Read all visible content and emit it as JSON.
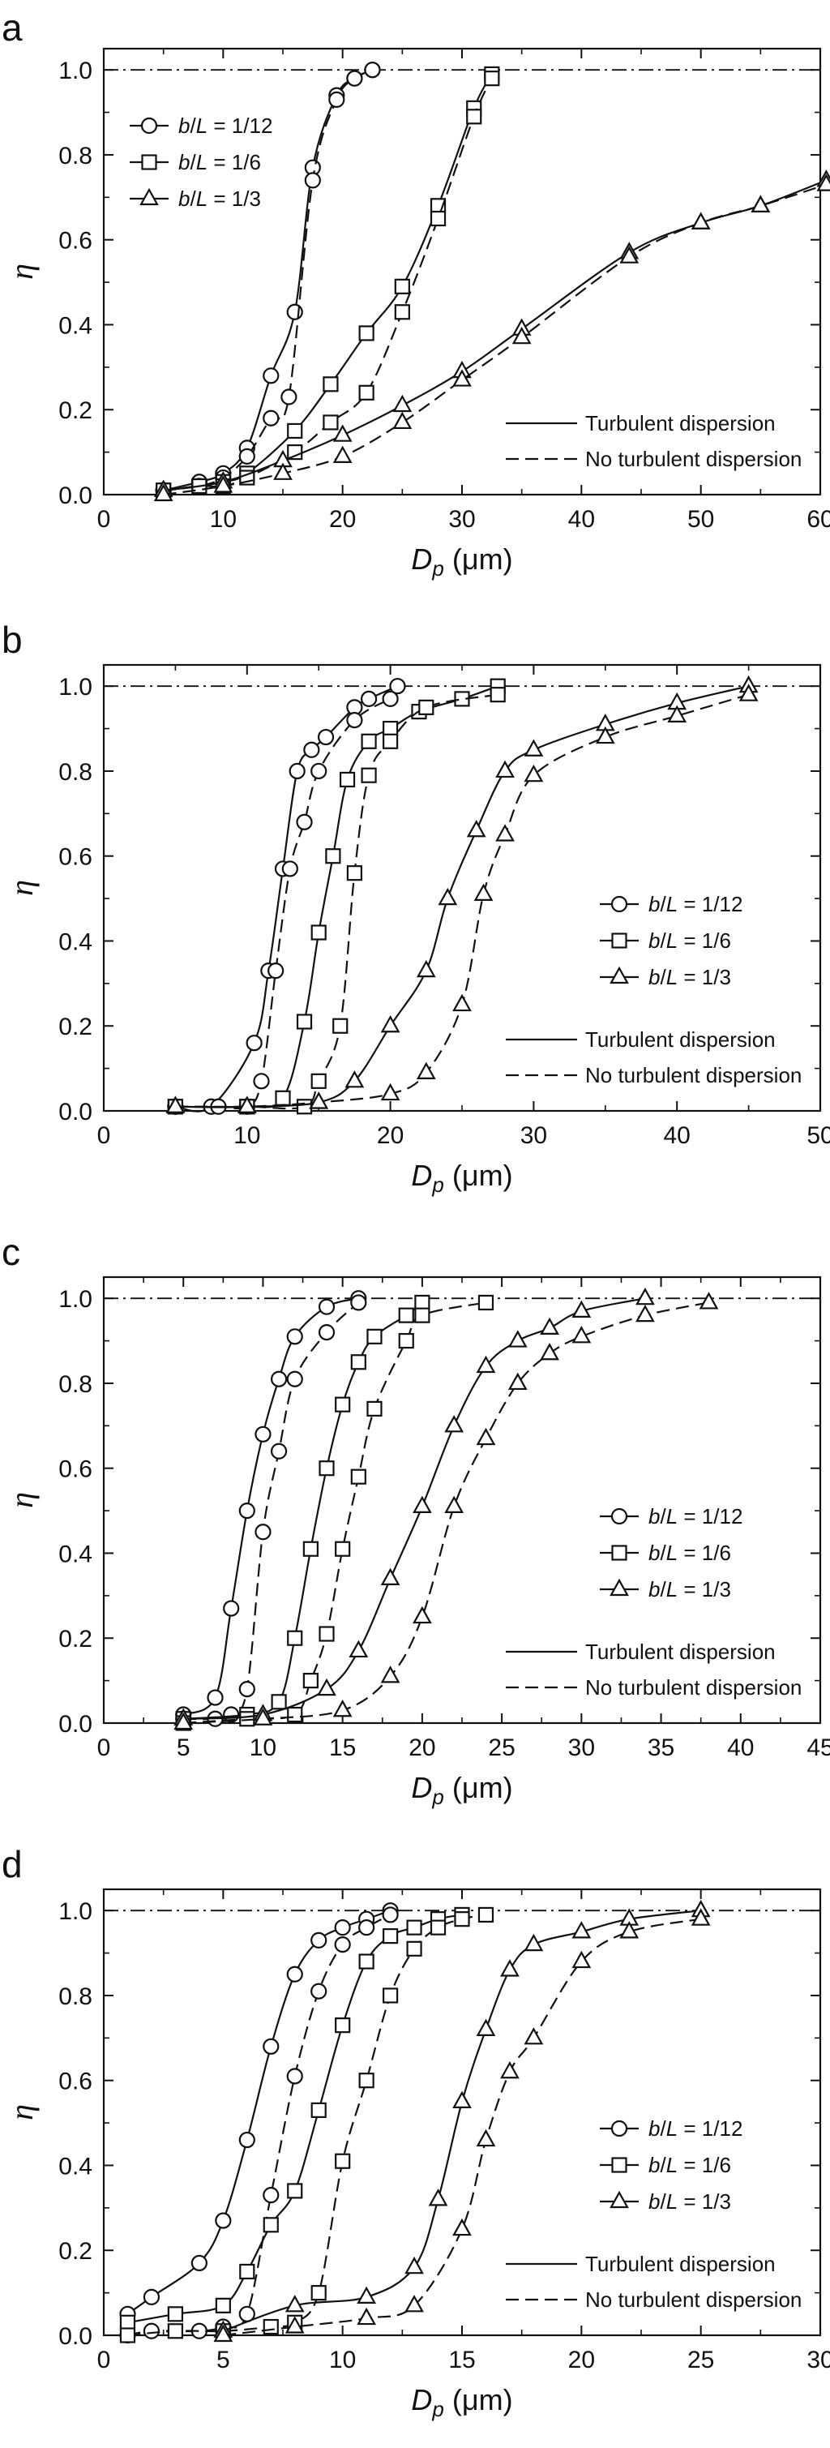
{
  "figure": {
    "panels": [
      "a",
      "b",
      "c",
      "d"
    ]
  },
  "chart_data": [
    {
      "panel_label": "a",
      "type": "line",
      "xlabel": "D_p (μm)",
      "xlabel_main": "D",
      "xlabel_sub": "p",
      "xlabel_unit": " (μm)",
      "ylabel": "η",
      "xlim": [
        0,
        60
      ],
      "ylim": [
        0,
        1.05
      ],
      "xticks": [
        0,
        10,
        20,
        30,
        40,
        50,
        60
      ],
      "yticks": [
        0.0,
        0.2,
        0.4,
        0.6,
        0.8,
        1.0
      ],
      "ytick_labels": [
        "0.0",
        "0.2",
        "0.4",
        "0.6",
        "0.8",
        "1.0"
      ],
      "reference_line": 1.0,
      "legend_series_position": "top-left",
      "legend_style_position": "bottom-right",
      "series": [
        {
          "name": "b/L = 1/12",
          "marker": "circle",
          "dispersion": "turbulent",
          "x": [
            5,
            8,
            10,
            12,
            14,
            16,
            17.5,
            19.5,
            21,
            22.5
          ],
          "y": [
            0.01,
            0.03,
            0.05,
            0.11,
            0.28,
            0.43,
            0.77,
            0.94,
            0.98,
            1.0
          ]
        },
        {
          "name": "b/L = 1/12",
          "marker": "circle",
          "dispersion": "none",
          "x": [
            5,
            8,
            10,
            12,
            14,
            15.5,
            17.5,
            19.5,
            21,
            22.5
          ],
          "y": [
            0.01,
            0.02,
            0.04,
            0.09,
            0.18,
            0.23,
            0.74,
            0.93,
            0.98,
            1.0
          ]
        },
        {
          "name": "b/L = 1/6",
          "marker": "square",
          "dispersion": "turbulent",
          "x": [
            5,
            8,
            10,
            12,
            16,
            19,
            22,
            25,
            28,
            31,
            32.5
          ],
          "y": [
            0.01,
            0.02,
            0.03,
            0.05,
            0.15,
            0.26,
            0.38,
            0.49,
            0.68,
            0.91,
            0.99
          ]
        },
        {
          "name": "b/L = 1/6",
          "marker": "square",
          "dispersion": "none",
          "x": [
            5,
            8,
            10,
            12,
            16,
            19,
            22,
            25,
            28,
            31,
            32.5
          ],
          "y": [
            0.01,
            0.02,
            0.02,
            0.04,
            0.1,
            0.17,
            0.24,
            0.43,
            0.65,
            0.89,
            0.98
          ]
        },
        {
          "name": "b/L = 1/3",
          "marker": "triangle",
          "dispersion": "turbulent",
          "x": [
            5,
            10,
            15,
            20,
            25,
            30,
            35,
            44,
            50,
            55,
            60.5
          ],
          "y": [
            0.01,
            0.03,
            0.08,
            0.14,
            0.21,
            0.29,
            0.39,
            0.57,
            0.64,
            0.68,
            0.74
          ]
        },
        {
          "name": "b/L = 1/3",
          "marker": "triangle",
          "dispersion": "none",
          "x": [
            5,
            10,
            15,
            20,
            25,
            30,
            35,
            44,
            50,
            55,
            60.5
          ],
          "y": [
            0.0,
            0.02,
            0.05,
            0.09,
            0.17,
            0.27,
            0.37,
            0.56,
            0.64,
            0.68,
            0.73
          ]
        }
      ]
    },
    {
      "panel_label": "b",
      "type": "line",
      "xlabel": "D_p (μm)",
      "xlabel_main": "D",
      "xlabel_sub": "p",
      "xlabel_unit": " (μm)",
      "ylabel": "η",
      "xlim": [
        0,
        50
      ],
      "ylim": [
        0,
        1.05
      ],
      "xticks": [
        0,
        10,
        20,
        30,
        40,
        50
      ],
      "yticks": [
        0.0,
        0.2,
        0.4,
        0.6,
        0.8,
        1.0
      ],
      "ytick_labels": [
        "0.0",
        "0.2",
        "0.4",
        "0.6",
        "0.8",
        "1.0"
      ],
      "reference_line": 1.0,
      "legend_series_position": "right",
      "legend_style_position": "bottom-right",
      "series": [
        {
          "name": "b/L = 1/12",
          "marker": "circle",
          "dispersion": "turbulent",
          "x": [
            5,
            7.5,
            10.5,
            11.5,
            12.5,
            13.5,
            14.5,
            15.5,
            17.5,
            18.5,
            20.5
          ],
          "y": [
            0.01,
            0.01,
            0.16,
            0.33,
            0.57,
            0.8,
            0.85,
            0.88,
            0.95,
            0.97,
            1.0
          ]
        },
        {
          "name": "b/L = 1/12",
          "marker": "circle",
          "dispersion": "none",
          "x": [
            5,
            8,
            10,
            11,
            12,
            13,
            14,
            15,
            17.5,
            20
          ],
          "y": [
            0.01,
            0.01,
            0.01,
            0.07,
            0.33,
            0.57,
            0.68,
            0.8,
            0.92,
            0.97
          ]
        },
        {
          "name": "b/L = 1/6",
          "marker": "square",
          "dispersion": "turbulent",
          "x": [
            5,
            10,
            12.5,
            14,
            15,
            16,
            17,
            18.5,
            20,
            22,
            25,
            27.5
          ],
          "y": [
            0.01,
            0.01,
            0.03,
            0.21,
            0.42,
            0.6,
            0.78,
            0.87,
            0.9,
            0.94,
            0.97,
            1.0
          ]
        },
        {
          "name": "b/L = 1/6",
          "marker": "square",
          "dispersion": "none",
          "x": [
            5,
            10,
            14,
            15,
            16.5,
            17.5,
            18.5,
            20,
            22.5,
            27.5
          ],
          "y": [
            0.01,
            0.01,
            0.01,
            0.07,
            0.2,
            0.56,
            0.79,
            0.87,
            0.95,
            0.98
          ]
        },
        {
          "name": "b/L = 1/3",
          "marker": "triangle",
          "dispersion": "turbulent",
          "x": [
            5,
            10,
            15,
            17.5,
            20,
            22.5,
            24,
            26,
            28,
            30,
            35,
            40,
            45
          ],
          "y": [
            0.01,
            0.01,
            0.02,
            0.07,
            0.2,
            0.33,
            0.5,
            0.66,
            0.8,
            0.85,
            0.91,
            0.96,
            1.0
          ]
        },
        {
          "name": "b/L = 1/3",
          "marker": "triangle",
          "dispersion": "none",
          "x": [
            5,
            10,
            15,
            20,
            22.5,
            25,
            26.5,
            28,
            30,
            35,
            40,
            45
          ],
          "y": [
            0.01,
            0.01,
            0.02,
            0.04,
            0.09,
            0.25,
            0.51,
            0.65,
            0.79,
            0.88,
            0.93,
            0.98
          ]
        }
      ]
    },
    {
      "panel_label": "c",
      "type": "line",
      "xlabel": "D_p (μm)",
      "xlabel_main": "D",
      "xlabel_sub": "p",
      "xlabel_unit": " (μm)",
      "ylabel": "η",
      "xlim": [
        0,
        45
      ],
      "ylim": [
        0,
        1.05
      ],
      "xticks": [
        0,
        5,
        10,
        15,
        20,
        25,
        30,
        35,
        40,
        45
      ],
      "yticks": [
        0.0,
        0.2,
        0.4,
        0.6,
        0.8,
        1.0
      ],
      "ytick_labels": [
        "0.0",
        "0.2",
        "0.4",
        "0.6",
        "0.8",
        "1.0"
      ],
      "reference_line": 1.0,
      "legend_series_position": "right",
      "legend_style_position": "bottom-right",
      "series": [
        {
          "name": "b/L = 1/12",
          "marker": "circle",
          "dispersion": "turbulent",
          "x": [
            5,
            7,
            8,
            9,
            10,
            11,
            12,
            14,
            16
          ],
          "y": [
            0.02,
            0.06,
            0.27,
            0.5,
            0.68,
            0.81,
            0.91,
            0.98,
            1.0
          ]
        },
        {
          "name": "b/L = 1/12",
          "marker": "circle",
          "dispersion": "none",
          "x": [
            5,
            7,
            8,
            9,
            10,
            11,
            12,
            14,
            16
          ],
          "y": [
            0.01,
            0.01,
            0.02,
            0.08,
            0.45,
            0.64,
            0.81,
            0.92,
            0.99
          ]
        },
        {
          "name": "b/L = 1/6",
          "marker": "square",
          "dispersion": "turbulent",
          "x": [
            5,
            9,
            11,
            12,
            13,
            14,
            15,
            16,
            17,
            19,
            20
          ],
          "y": [
            0.01,
            0.02,
            0.05,
            0.2,
            0.41,
            0.6,
            0.75,
            0.85,
            0.91,
            0.96,
            0.99
          ]
        },
        {
          "name": "b/L = 1/6",
          "marker": "square",
          "dispersion": "none",
          "x": [
            5,
            9,
            12,
            13,
            14,
            15,
            16,
            17,
            19,
            20,
            24
          ],
          "y": [
            0.0,
            0.01,
            0.02,
            0.1,
            0.21,
            0.41,
            0.58,
            0.74,
            0.9,
            0.96,
            0.99
          ]
        },
        {
          "name": "b/L = 1/3",
          "marker": "triangle",
          "dispersion": "turbulent",
          "x": [
            5,
            10,
            14,
            16,
            18,
            20,
            22,
            24,
            26,
            28,
            30,
            34
          ],
          "y": [
            0.01,
            0.02,
            0.08,
            0.17,
            0.34,
            0.51,
            0.7,
            0.84,
            0.9,
            0.93,
            0.97,
            1.0
          ]
        },
        {
          "name": "b/L = 1/3",
          "marker": "triangle",
          "dispersion": "none",
          "x": [
            5,
            10,
            15,
            18,
            20,
            22,
            24,
            26,
            28,
            30,
            34,
            38
          ],
          "y": [
            0.0,
            0.01,
            0.03,
            0.11,
            0.25,
            0.51,
            0.67,
            0.8,
            0.87,
            0.91,
            0.96,
            0.99
          ]
        }
      ]
    },
    {
      "panel_label": "d",
      "type": "line",
      "xlabel": "D_p (μm)",
      "xlabel_main": "D",
      "xlabel_sub": "p",
      "xlabel_unit": " (μm)",
      "ylabel": "η",
      "xlim": [
        0,
        30
      ],
      "ylim": [
        0,
        1.05
      ],
      "xticks": [
        0,
        5,
        10,
        15,
        20,
        25,
        30
      ],
      "yticks": [
        0.0,
        0.2,
        0.4,
        0.6,
        0.8,
        1.0
      ],
      "ytick_labels": [
        "0.0",
        "0.2",
        "0.4",
        "0.6",
        "0.8",
        "1.0"
      ],
      "reference_line": 1.0,
      "legend_series_position": "right",
      "legend_style_position": "bottom-right",
      "series": [
        {
          "name": "b/L = 1/12",
          "marker": "circle",
          "dispersion": "turbulent",
          "x": [
            1,
            2,
            4,
            5,
            6,
            7,
            8,
            9,
            10,
            11,
            12
          ],
          "y": [
            0.05,
            0.09,
            0.17,
            0.27,
            0.46,
            0.68,
            0.85,
            0.93,
            0.96,
            0.98,
            1.0
          ]
        },
        {
          "name": "b/L = 1/12",
          "marker": "circle",
          "dispersion": "none",
          "x": [
            1,
            2,
            4,
            5,
            6,
            7,
            8,
            9,
            10,
            11,
            12
          ],
          "y": [
            0.0,
            0.01,
            0.01,
            0.02,
            0.05,
            0.33,
            0.61,
            0.81,
            0.92,
            0.96,
            0.99
          ]
        },
        {
          "name": "b/L = 1/6",
          "marker": "square",
          "dispersion": "turbulent",
          "x": [
            1,
            3,
            5,
            6,
            7,
            8,
            9,
            10,
            11,
            12,
            13,
            14,
            15
          ],
          "y": [
            0.03,
            0.05,
            0.07,
            0.15,
            0.26,
            0.34,
            0.53,
            0.73,
            0.88,
            0.94,
            0.96,
            0.98,
            0.99
          ]
        },
        {
          "name": "b/L = 1/6",
          "marker": "square",
          "dispersion": "none",
          "x": [
            1,
            3,
            5,
            7,
            8,
            9,
            10,
            11,
            12,
            13,
            14,
            15,
            16
          ],
          "y": [
            0.0,
            0.01,
            0.01,
            0.02,
            0.03,
            0.1,
            0.41,
            0.6,
            0.8,
            0.91,
            0.96,
            0.98,
            0.99
          ]
        },
        {
          "name": "b/L = 1/3",
          "marker": "triangle",
          "dispersion": "turbulent",
          "x": [
            5,
            8,
            11,
            13,
            14,
            15,
            16,
            17,
            18,
            20,
            22,
            25
          ],
          "y": [
            0.01,
            0.07,
            0.09,
            0.16,
            0.32,
            0.55,
            0.72,
            0.86,
            0.92,
            0.95,
            0.98,
            1.0
          ]
        },
        {
          "name": "b/L = 1/3",
          "marker": "triangle",
          "dispersion": "none",
          "x": [
            5,
            8,
            11,
            13,
            15,
            16,
            17,
            18,
            20,
            22,
            25
          ],
          "y": [
            0.0,
            0.02,
            0.04,
            0.07,
            0.25,
            0.46,
            0.62,
            0.7,
            0.88,
            0.95,
            0.98
          ]
        }
      ]
    }
  ],
  "legend_styles": [
    {
      "label": "Turbulent dispersion",
      "dash": "solid"
    },
    {
      "label": "No turbulent dispersion",
      "dash": "dashed"
    }
  ],
  "legend_series_labels": [
    {
      "marker": "circle",
      "var": "b/L",
      "ratio": " = 1/12"
    },
    {
      "marker": "square",
      "var": "b/L",
      "ratio": " = 1/6"
    },
    {
      "marker": "triangle",
      "var": "b/L",
      "ratio": " = 1/3"
    }
  ]
}
